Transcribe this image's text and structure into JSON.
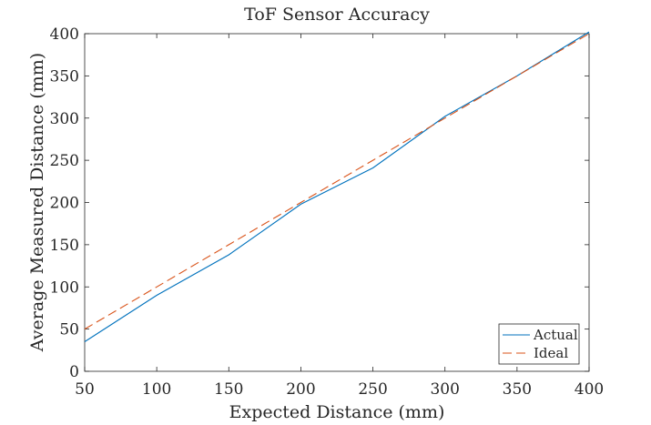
{
  "chart_data": {
    "type": "line",
    "title": "ToF Sensor Accuracy",
    "xlabel": "Expected Distance (mm)",
    "ylabel": "Average Measured Distance (mm)",
    "xlim": [
      50,
      400
    ],
    "ylim": [
      0,
      400
    ],
    "xticks": [
      50,
      100,
      150,
      200,
      250,
      300,
      350,
      400
    ],
    "yticks": [
      0,
      50,
      100,
      150,
      200,
      250,
      300,
      350,
      400
    ],
    "grid": false,
    "legend_position": "bottom-right",
    "x": [
      50,
      100,
      150,
      200,
      250,
      300,
      350,
      400
    ],
    "series": [
      {
        "name": "Actual",
        "values": [
          35,
          90,
          138,
          198,
          241,
          302,
          350,
          402
        ],
        "color": "#0072BD",
        "style": "solid"
      },
      {
        "name": "Ideal",
        "values": [
          50,
          100,
          150,
          200,
          250,
          300,
          350,
          400
        ],
        "color": "#D95319",
        "style": "dashed"
      }
    ]
  }
}
